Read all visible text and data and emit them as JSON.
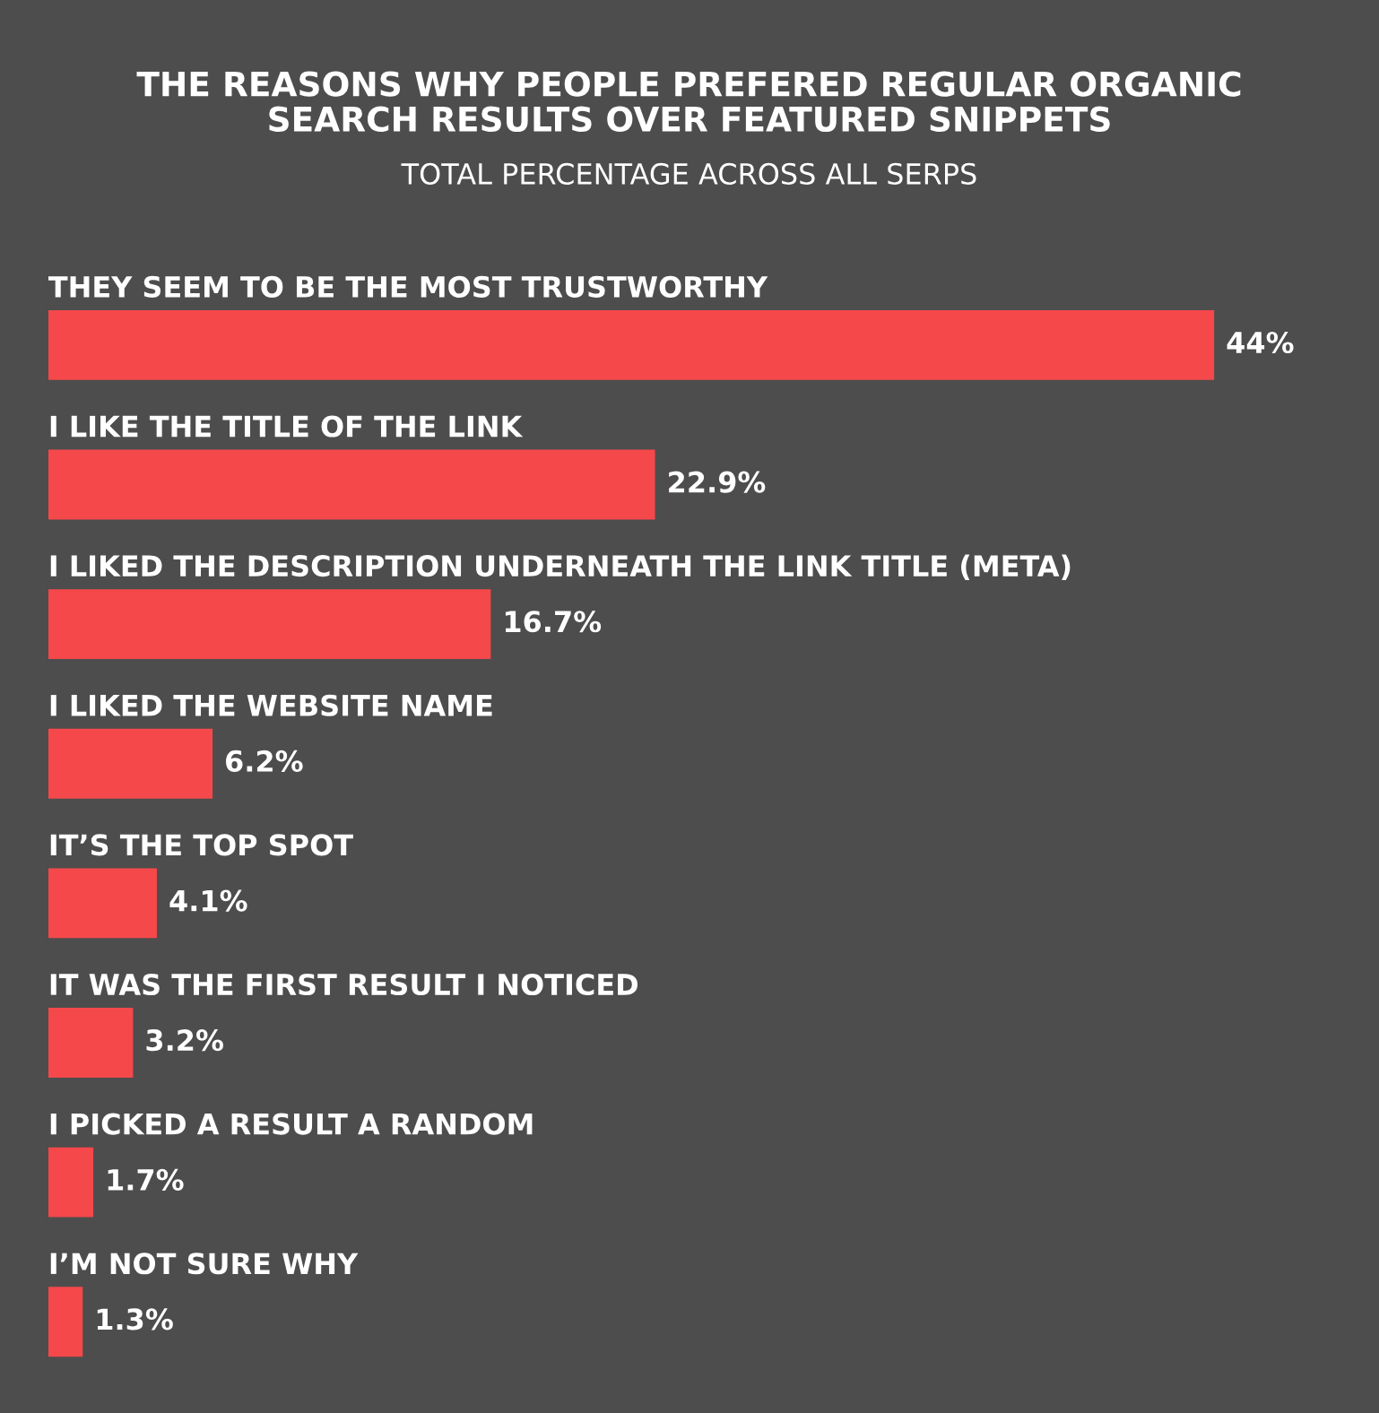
{
  "chart_data": {
    "type": "bar",
    "orientation": "horizontal",
    "title": "THE REASONS WHY PEOPLE PREFERED REGULAR ORGANIC\nSEARCH RESULTS OVER FEATURED SNIPPETS",
    "subtitle": "TOTAL PERCENTAGE ACROSS ALL SERPS",
    "categories": [
      "THEY SEEM TO BE THE MOST TRUSTWORTHY",
      "I LIKE THE TITLE OF THE LINK",
      "I LIKED THE DESCRIPTION UNDERNEATH THE LINK TITLE (META)",
      "I LIKED THE WEBSITE NAME",
      "IT’S THE TOP SPOT",
      "IT WAS THE FIRST RESULT I NOTICED",
      "I PICKED A RESULT A RANDOM",
      "I’M NOT SURE WHY"
    ],
    "values": [
      44,
      22.9,
      16.7,
      6.2,
      4.1,
      3.2,
      1.7,
      1.3
    ],
    "value_labels": [
      "44%",
      "22.9%",
      "16.7%",
      "6.2%",
      "4.1%",
      "3.2%",
      "1.7%",
      "1.3%"
    ],
    "color": "#f5484b"
  }
}
